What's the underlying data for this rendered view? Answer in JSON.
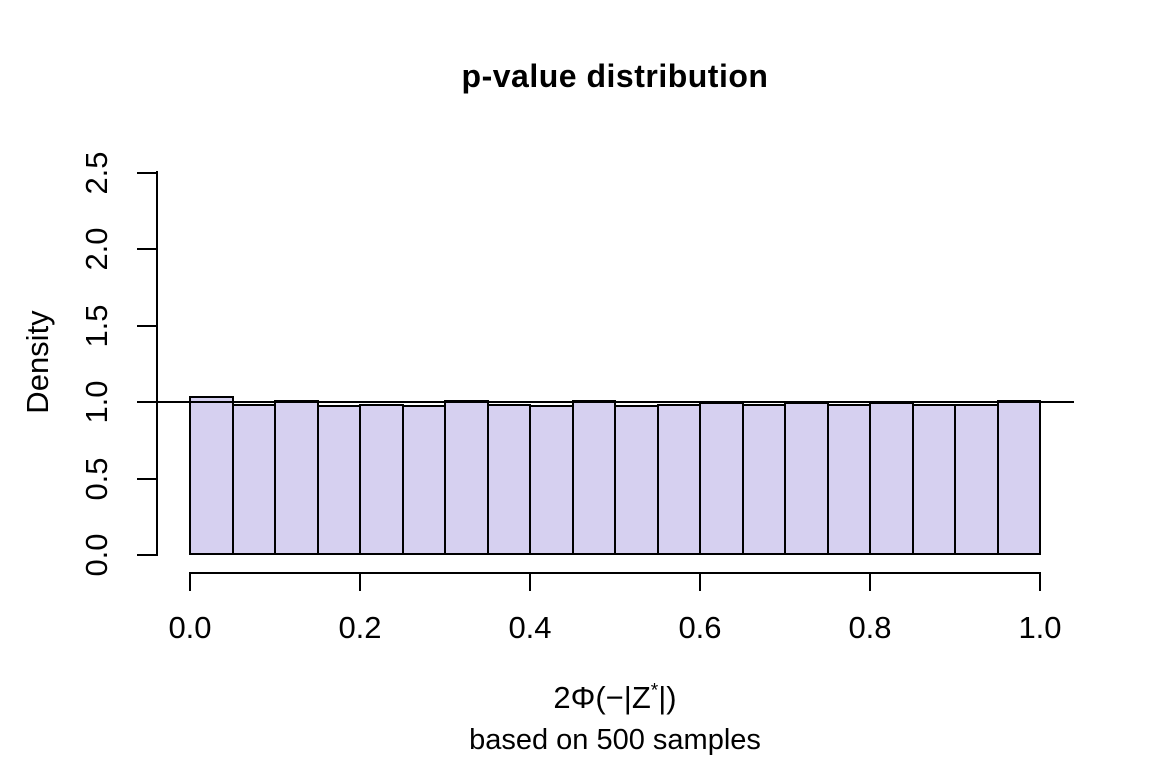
{
  "chart_data": {
    "type": "bar",
    "subtype": "histogram",
    "title": "p-value distribution",
    "ylabel": "Density",
    "xlabel": "2Φ(−|Z*|)",
    "xlabel_parts": {
      "prefix": "2Φ(−|Z",
      "sup": "*",
      "suffix": "|)"
    },
    "sub_label": "based on 500 samples",
    "n_samples": 500,
    "bin_start": 0.0,
    "bin_width": 0.05,
    "densities": [
      1.04,
      0.99,
      1.01,
      0.98,
      0.99,
      0.98,
      1.01,
      0.99,
      0.98,
      1.01,
      0.98,
      0.99,
      1.0,
      0.99,
      1.0,
      0.99,
      1.0,
      0.99,
      0.99,
      1.01
    ],
    "x_ticks": [
      "0.0",
      "0.2",
      "0.4",
      "0.6",
      "0.8",
      "1.0"
    ],
    "y_ticks": [
      "0.0",
      "0.5",
      "1.0",
      "1.5",
      "2.0",
      "2.5"
    ],
    "xlim": [
      0,
      1
    ],
    "ylim": [
      0,
      2.5
    ],
    "reference_line_y": 1.0,
    "grid": false,
    "legend": null,
    "colors": {
      "bar_fill": "#d6d0f0",
      "bar_border": "#000000",
      "reference_line": "#000000",
      "axis": "#000000",
      "text": "#000000",
      "background": "#ffffff"
    }
  }
}
